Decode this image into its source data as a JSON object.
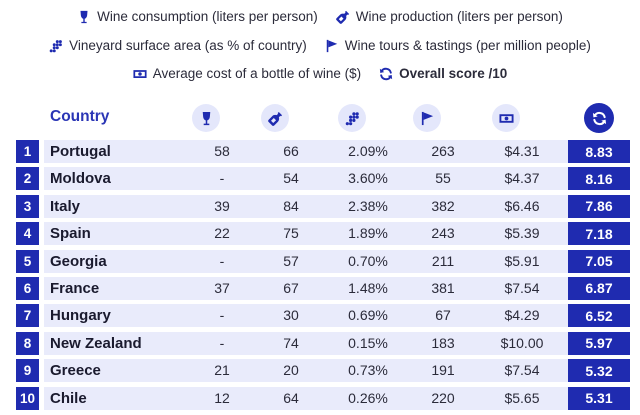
{
  "legend": {
    "consumption": {
      "label": "Wine consumption (liters per person)",
      "icon": "wine-glass-icon"
    },
    "production": {
      "label": "Wine production (liters per person)",
      "icon": "wine-bottle-icon"
    },
    "vineyard": {
      "label": "Vineyard surface area (as % of country)",
      "icon": "grapes-icon"
    },
    "tours": {
      "label": "Wine tours & tastings (per million people)",
      "icon": "flag-icon"
    },
    "cost": {
      "label": "Average cost of a bottle of wine ($)",
      "icon": "banknote-icon"
    },
    "score": {
      "label": "Overall score /10",
      "icon": "refresh-icon"
    }
  },
  "table": {
    "country_header": "Country",
    "rows": [
      {
        "rank": "1",
        "country": "Portugal",
        "consumption": "58",
        "production": "66",
        "vineyard": "2.09%",
        "tours": "263",
        "cost": "$4.31",
        "score": "8.83"
      },
      {
        "rank": "2",
        "country": "Moldova",
        "consumption": "-",
        "production": "54",
        "vineyard": "3.60%",
        "tours": "55",
        "cost": "$4.37",
        "score": "8.16"
      },
      {
        "rank": "3",
        "country": "Italy",
        "consumption": "39",
        "production": "84",
        "vineyard": "2.38%",
        "tours": "382",
        "cost": "$6.46",
        "score": "7.86"
      },
      {
        "rank": "4",
        "country": "Spain",
        "consumption": "22",
        "production": "75",
        "vineyard": "1.89%",
        "tours": "243",
        "cost": "$5.39",
        "score": "7.18"
      },
      {
        "rank": "5",
        "country": "Georgia",
        "consumption": "-",
        "production": "57",
        "vineyard": "0.70%",
        "tours": "211",
        "cost": "$5.91",
        "score": "7.05"
      },
      {
        "rank": "6",
        "country": "France",
        "consumption": "37",
        "production": "67",
        "vineyard": "1.48%",
        "tours": "381",
        "cost": "$7.54",
        "score": "6.87"
      },
      {
        "rank": "7",
        "country": "Hungary",
        "consumption": "-",
        "production": "30",
        "vineyard": "0.69%",
        "tours": "67",
        "cost": "$4.29",
        "score": "6.52"
      },
      {
        "rank": "8",
        "country": "New Zealand",
        "consumption": "-",
        "production": "74",
        "vineyard": "0.15%",
        "tours": "183",
        "cost": "$10.00",
        "score": "5.97"
      },
      {
        "rank": "9",
        "country": "Greece",
        "consumption": "21",
        "production": "20",
        "vineyard": "0.73%",
        "tours": "191",
        "cost": "$7.54",
        "score": "5.32"
      },
      {
        "rank": "10",
        "country": "Chile",
        "consumption": "12",
        "production": "64",
        "vineyard": "0.26%",
        "tours": "220",
        "cost": "$5.65",
        "score": "5.31"
      }
    ]
  },
  "colors": {
    "accent": "#1f2bb0",
    "band": "#e9ebfb",
    "header_icon_bg": "#e4e7fb",
    "header_text": "#2a35b5"
  }
}
